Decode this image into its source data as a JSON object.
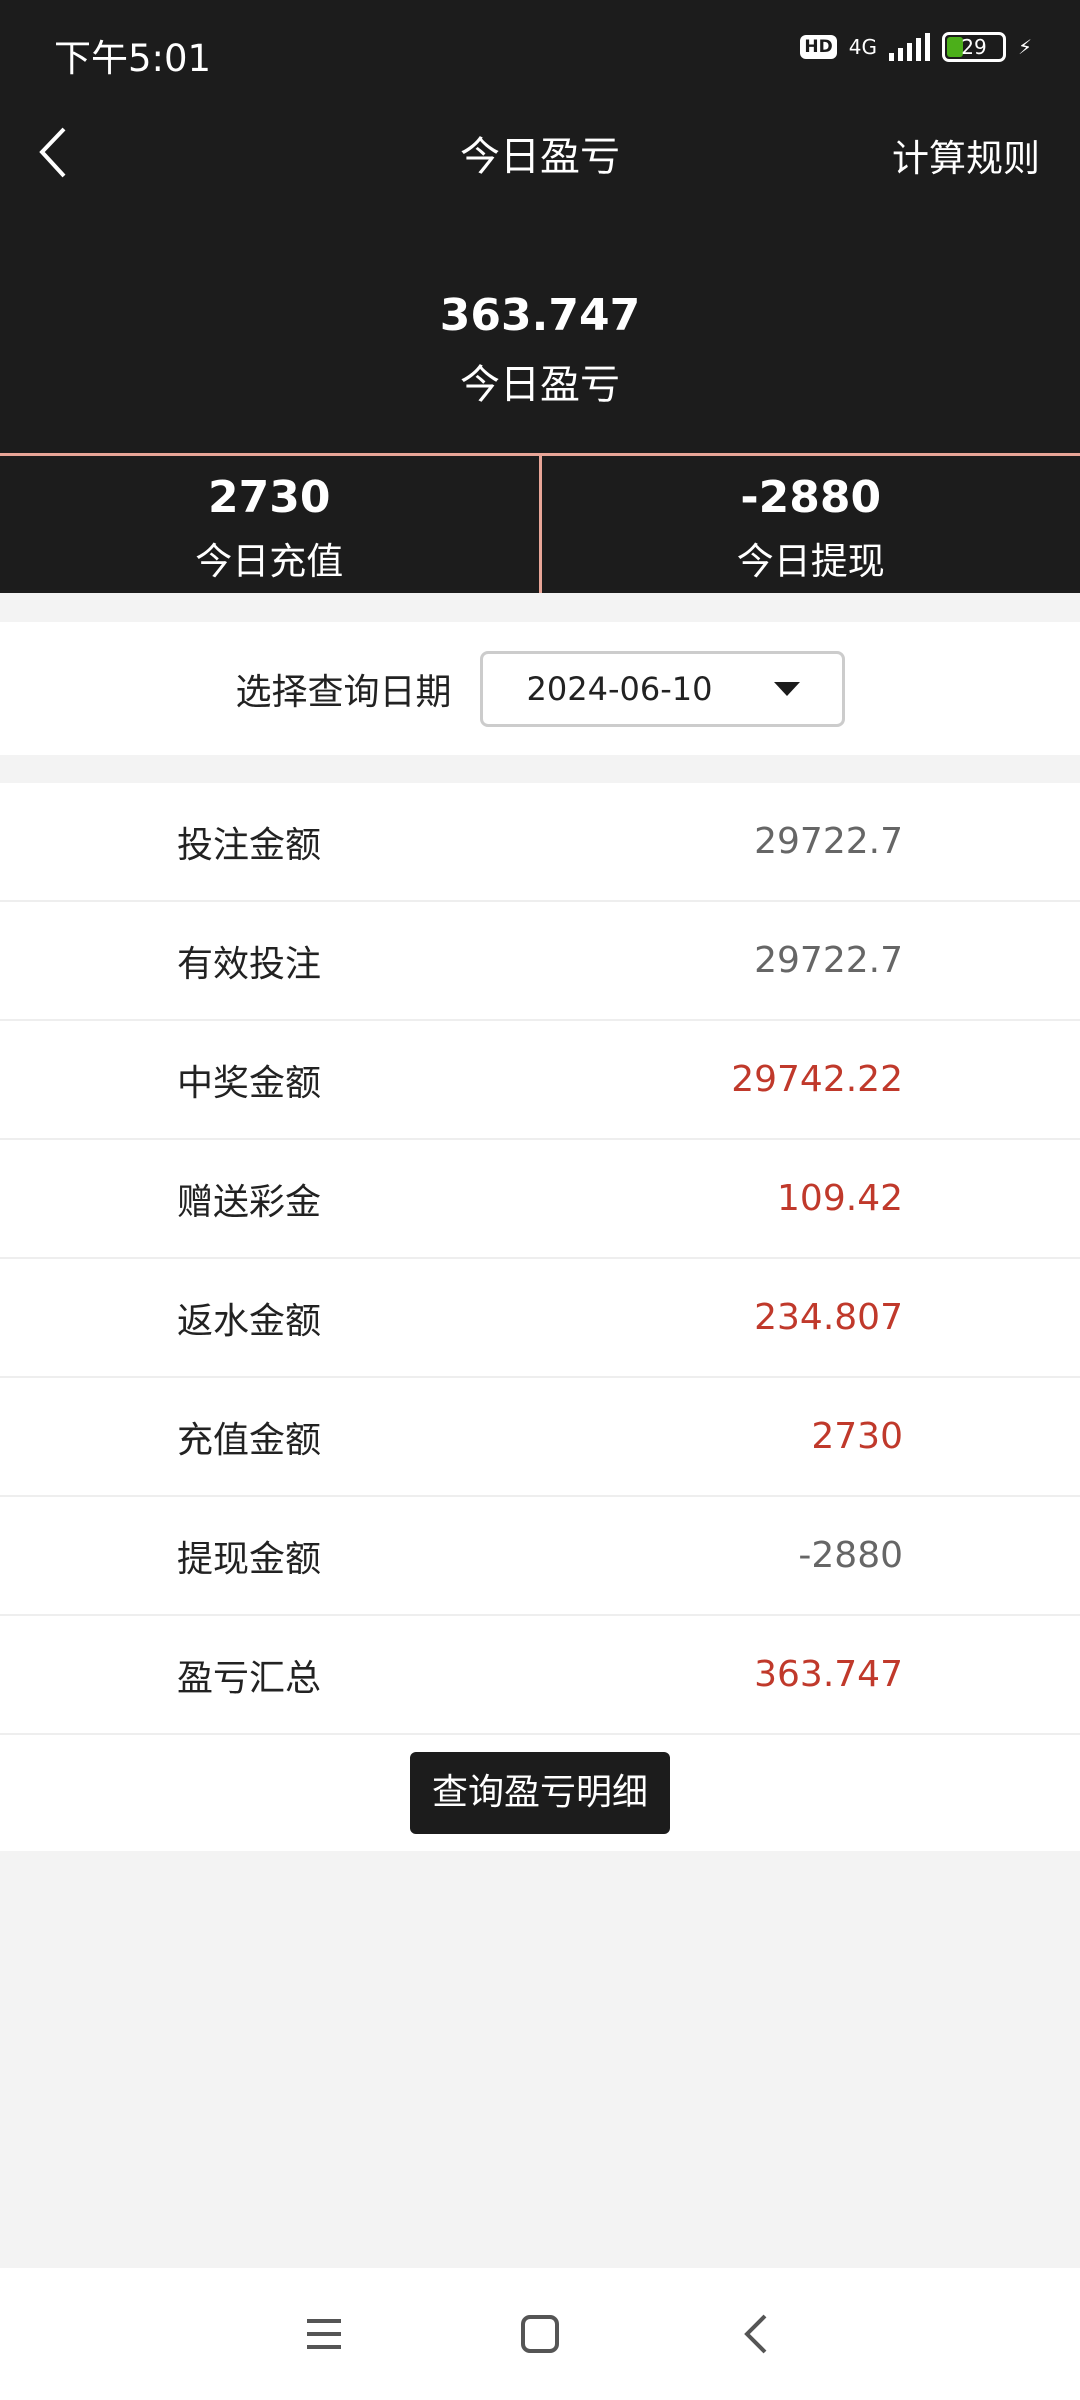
{
  "status_bar": {
    "time": "下午5:01",
    "network": "4G",
    "battery": "29",
    "hd": "HD"
  },
  "header": {
    "title": "今日盈亏",
    "rules_link": "计算规则"
  },
  "summary": {
    "value": "363.747",
    "label": "今日盈亏"
  },
  "stats": [
    {
      "value": "2730",
      "label": "今日充值"
    },
    {
      "value": "-2880",
      "label": "今日提现"
    }
  ],
  "date_filter": {
    "label": "选择查询日期",
    "value": "2024-06-10"
  },
  "rows": [
    {
      "label": "投注金额",
      "value": "29722.7",
      "color": "#666666"
    },
    {
      "label": "有效投注",
      "value": "29722.7",
      "color": "#666666"
    },
    {
      "label": "中奖金额",
      "value": "29742.22",
      "color": "#c0392b"
    },
    {
      "label": "赠送彩金",
      "value": "109.42",
      "color": "#c0392b"
    },
    {
      "label": "返水金额",
      "value": "234.807",
      "color": "#c0392b"
    },
    {
      "label": "充值金额",
      "value": "2730",
      "color": "#c0392b"
    },
    {
      "label": "提现金额",
      "value": "-2880",
      "color": "#666666"
    },
    {
      "label": "盈亏汇总",
      "value": "363.747",
      "color": "#c0392b"
    }
  ],
  "detail_button": "查询盈亏明细"
}
